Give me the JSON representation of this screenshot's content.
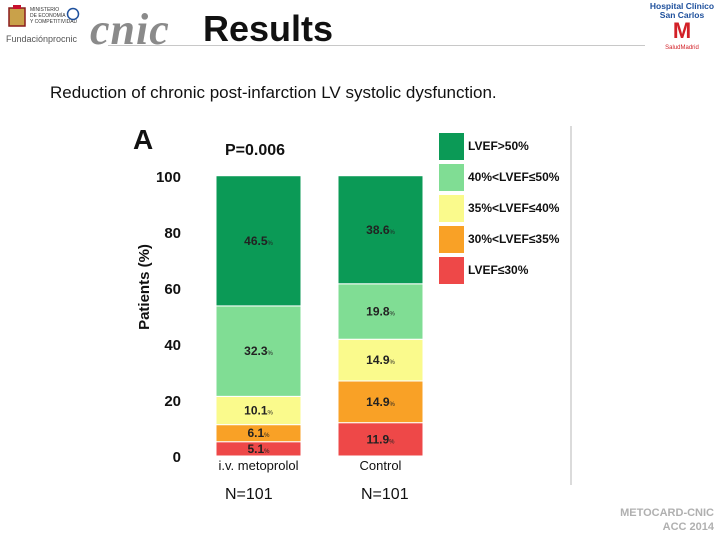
{
  "header": {
    "title": "Results",
    "brand": "cnic",
    "left_logo_lines": [
      "MINISTERIO",
      "DE ECONOMÍA",
      "Y COMPETITIVIDAD"
    ],
    "left_logo_name": "Fundaciónprocnic",
    "right_logo_lines": [
      "Hospital Clínico",
      "San Carlos"
    ],
    "right_logo_mark": "M",
    "right_logo_sub": "SaludMadrid"
  },
  "subtitle": "Reduction of chronic post-infarction LV systolic dysfunction.",
  "footer": {
    "line1": "METOCARD-CNIC",
    "line2": "ACC 2014"
  },
  "panel_letter": "A",
  "p_value": "P=0.006",
  "n_labels": [
    "N=101",
    "N=101"
  ],
  "colors": {
    "lvef_gt50": "#0b9a56",
    "lvef_40_50": "#80dd94",
    "lvef_35_40": "#fafa8c",
    "lvef_30_35": "#f9a126",
    "lvef_le30": "#ee4848"
  },
  "chart_data": {
    "type": "bar",
    "stacked": true,
    "categories": [
      "i.v. metoprolol",
      "Control"
    ],
    "ylabel": "Patients (%)",
    "ylim": [
      0,
      100
    ],
    "yticks": [
      0,
      20,
      40,
      60,
      80,
      100
    ],
    "series": [
      {
        "name": "LVEF≤30%",
        "values": [
          5.1,
          11.9
        ],
        "labels": [
          "5.1",
          "11.9"
        ],
        "color": "#ee4848"
      },
      {
        "name": "30%<LVEF≤35%",
        "values": [
          6.1,
          14.9
        ],
        "labels": [
          "6.1",
          "14.9"
        ],
        "color": "#f9a126"
      },
      {
        "name": "35%<LVEF≤40%",
        "values": [
          10.1,
          14.9
        ],
        "labels": [
          "10.1",
          "14.9"
        ],
        "color": "#fafa8c"
      },
      {
        "name": "40%<LVEF≤50%",
        "values": [
          32.3,
          19.8
        ],
        "labels": [
          "32.3",
          "19.8"
        ],
        "color": "#80dd94"
      },
      {
        "name": "LVEF>50%",
        "values": [
          46.5,
          38.6
        ],
        "labels": [
          "46.5",
          "38.6"
        ],
        "color": "#0b9a56"
      }
    ],
    "value_suffix": "%",
    "legend_position": "right"
  }
}
